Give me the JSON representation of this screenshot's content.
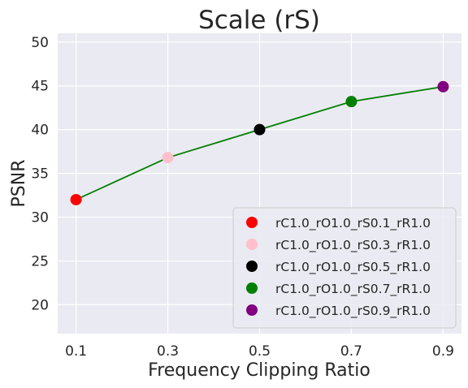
{
  "chart_data": {
    "type": "line",
    "title": "Scale (rS)",
    "xlabel": "Frequency Clipping Ratio",
    "ylabel": "PSNR",
    "x": [
      0.1,
      0.3,
      0.5,
      0.7,
      0.9
    ],
    "x_tick_labels": [
      "0.1",
      "0.3",
      "0.5",
      "0.7",
      "0.9"
    ],
    "y_ticks": [
      20,
      25,
      30,
      35,
      40,
      45,
      50
    ],
    "y_tick_labels": [
      "20",
      "25",
      "30",
      "35",
      "40",
      "45",
      "50"
    ],
    "xlim": [
      0.06,
      0.94
    ],
    "ylim": [
      16.7,
      51.0
    ],
    "grid": true,
    "legend_position": "bottom-right",
    "line_color": "#008000",
    "points": [
      {
        "name": "rC1.0_rO1.0_rS0.1_rR1.0",
        "x": 0.1,
        "y": 32.0,
        "color": "#ff0000"
      },
      {
        "name": "rC1.0_rO1.0_rS0.3_rR1.0",
        "x": 0.3,
        "y": 36.8,
        "color": "#ffc0cb"
      },
      {
        "name": "rC1.0_rO1.0_rS0.5_rR1.0",
        "x": 0.5,
        "y": 40.0,
        "color": "#000000"
      },
      {
        "name": "rC1.0_rO1.0_rS0.7_rR1.0",
        "x": 0.7,
        "y": 43.2,
        "color": "#008000"
      },
      {
        "name": "rC1.0_rO1.0_rS0.9_rR1.0",
        "x": 0.9,
        "y": 44.9,
        "color": "#800080"
      }
    ]
  }
}
